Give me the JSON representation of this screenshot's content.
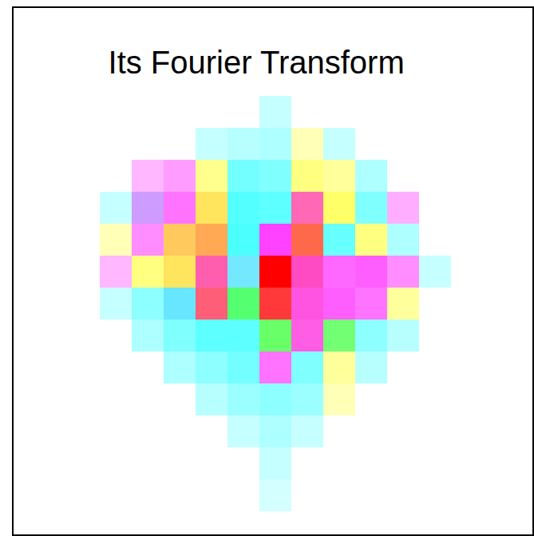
{
  "chart_data": {
    "type": "heatmap",
    "title": "Its Fourier Transform",
    "tick_labels": false,
    "magnitude": [
      [
        0,
        0,
        0,
        0,
        0,
        0,
        0.05,
        0,
        0,
        0,
        0,
        0,
        0
      ],
      [
        0,
        0,
        0,
        0,
        0.05,
        0.08,
        0.1,
        0.08,
        0.05,
        0,
        0,
        0,
        0
      ],
      [
        0,
        0,
        0.08,
        0.15,
        0.2,
        0.3,
        0.25,
        0.25,
        0.15,
        0.1,
        0,
        0,
        0
      ],
      [
        0,
        0.05,
        0.15,
        0.3,
        0.4,
        0.45,
        0.4,
        0.35,
        0.35,
        0.25,
        0.1,
        0,
        0
      ],
      [
        0,
        0.08,
        0.2,
        0.4,
        0.45,
        0.5,
        0.55,
        0.5,
        0.35,
        0.25,
        0.1,
        0,
        0
      ],
      [
        0,
        0.08,
        0.25,
        0.4,
        0.4,
        0.3,
        1,
        0.5,
        0.35,
        0.4,
        0.2,
        0.05,
        0
      ],
      [
        0,
        0.05,
        0.2,
        0.35,
        0.4,
        0.45,
        0.6,
        0.45,
        0.4,
        0.3,
        0.15,
        0,
        0
      ],
      [
        0,
        0,
        0.1,
        0.25,
        0.4,
        0.4,
        0.35,
        0.4,
        0.3,
        0.2,
        0.08,
        0,
        0
      ],
      [
        0,
        0,
        0,
        0.1,
        0.2,
        0.3,
        0.3,
        0.25,
        0.15,
        0.08,
        0,
        0,
        0
      ],
      [
        0,
        0,
        0,
        0,
        0.08,
        0.15,
        0.2,
        0.15,
        0.08,
        0,
        0,
        0,
        0
      ],
      [
        0,
        0,
        0,
        0,
        0,
        0.05,
        0.1,
        0.05,
        0,
        0,
        0,
        0,
        0
      ],
      [
        0,
        0,
        0,
        0,
        0,
        0,
        0.05,
        0,
        0,
        0,
        0,
        0,
        0
      ],
      [
        0,
        0,
        0,
        0,
        0,
        0,
        0.03,
        0,
        0,
        0,
        0,
        0,
        0
      ]
    ],
    "phase": [
      [
        0,
        0,
        0,
        0,
        0,
        0,
        180,
        0,
        0,
        0,
        0,
        0,
        0
      ],
      [
        0,
        0,
        0,
        0,
        180,
        180,
        180,
        60,
        180,
        0,
        0,
        0,
        0
      ],
      [
        0,
        0,
        300,
        300,
        60,
        180,
        180,
        60,
        60,
        180,
        0,
        0,
        0
      ],
      [
        0,
        180,
        270,
        300,
        50,
        180,
        180,
        330,
        60,
        180,
        300,
        0,
        0
      ],
      [
        0,
        60,
        300,
        40,
        30,
        180,
        300,
        10,
        180,
        60,
        180,
        0,
        0
      ],
      [
        0,
        300,
        60,
        50,
        330,
        190,
        0,
        320,
        300,
        300,
        300,
        180,
        0
      ],
      [
        0,
        180,
        180,
        190,
        350,
        130,
        0,
        310,
        300,
        300,
        60,
        0,
        0
      ],
      [
        0,
        0,
        180,
        180,
        180,
        180,
        120,
        310,
        120,
        180,
        180,
        0,
        0
      ],
      [
        0,
        0,
        0,
        180,
        180,
        180,
        300,
        180,
        60,
        180,
        0,
        0,
        0
      ],
      [
        0,
        0,
        0,
        0,
        180,
        180,
        180,
        180,
        60,
        0,
        0,
        0,
        0
      ],
      [
        0,
        0,
        0,
        0,
        0,
        180,
        180,
        180,
        0,
        0,
        0,
        0,
        0
      ],
      [
        0,
        0,
        0,
        0,
        0,
        0,
        180,
        0,
        0,
        0,
        0,
        0,
        0
      ],
      [
        0,
        0,
        0,
        0,
        0,
        0,
        180,
        0,
        0,
        0,
        0,
        0,
        0
      ]
    ]
  }
}
